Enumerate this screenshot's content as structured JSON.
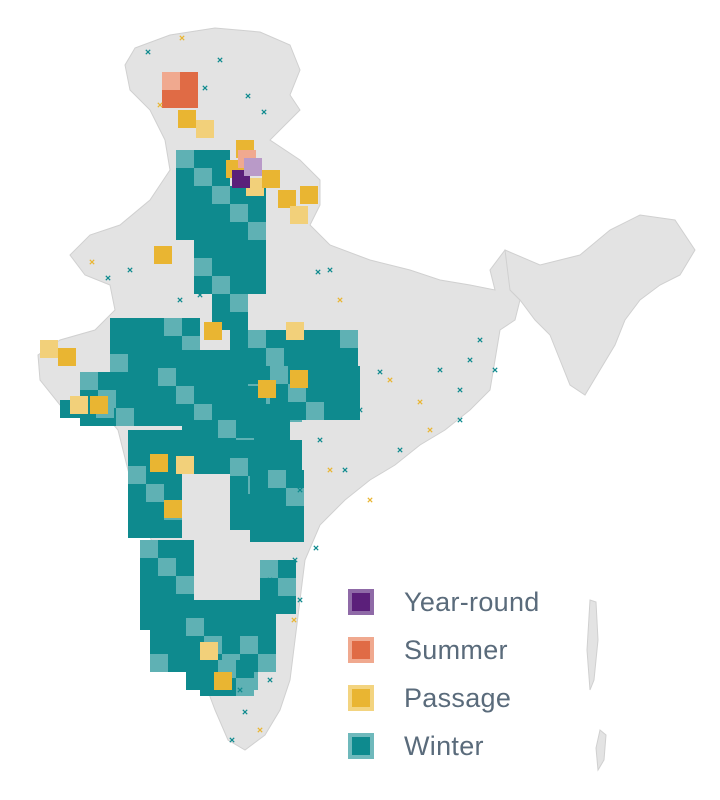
{
  "legend": {
    "items": [
      {
        "label": "Year-round",
        "fill": "#5b1f7a",
        "border": "#8f6aa7"
      },
      {
        "label": "Summer",
        "fill": "#e06b45",
        "border": "#f0a98f"
      },
      {
        "label": "Passage",
        "fill": "#e9b532",
        "border": "#f3d480"
      },
      {
        "label": "Winter",
        "fill": "#0e8a8e",
        "border": "#6fb9bc"
      }
    ]
  },
  "colors": {
    "land": "#e3e3e3",
    "land_edge": "#cfcfcf",
    "background": "#ffffff",
    "winter": "#0e8a8e",
    "winter_light": "#5fb1b4",
    "passage": "#e9b532",
    "passage_light": "#f2d07a",
    "summer": "#e06b45",
    "summer_light": "#f0a98f",
    "year_round": "#5b1f7a",
    "year_round_light": "#b99ac8"
  }
}
